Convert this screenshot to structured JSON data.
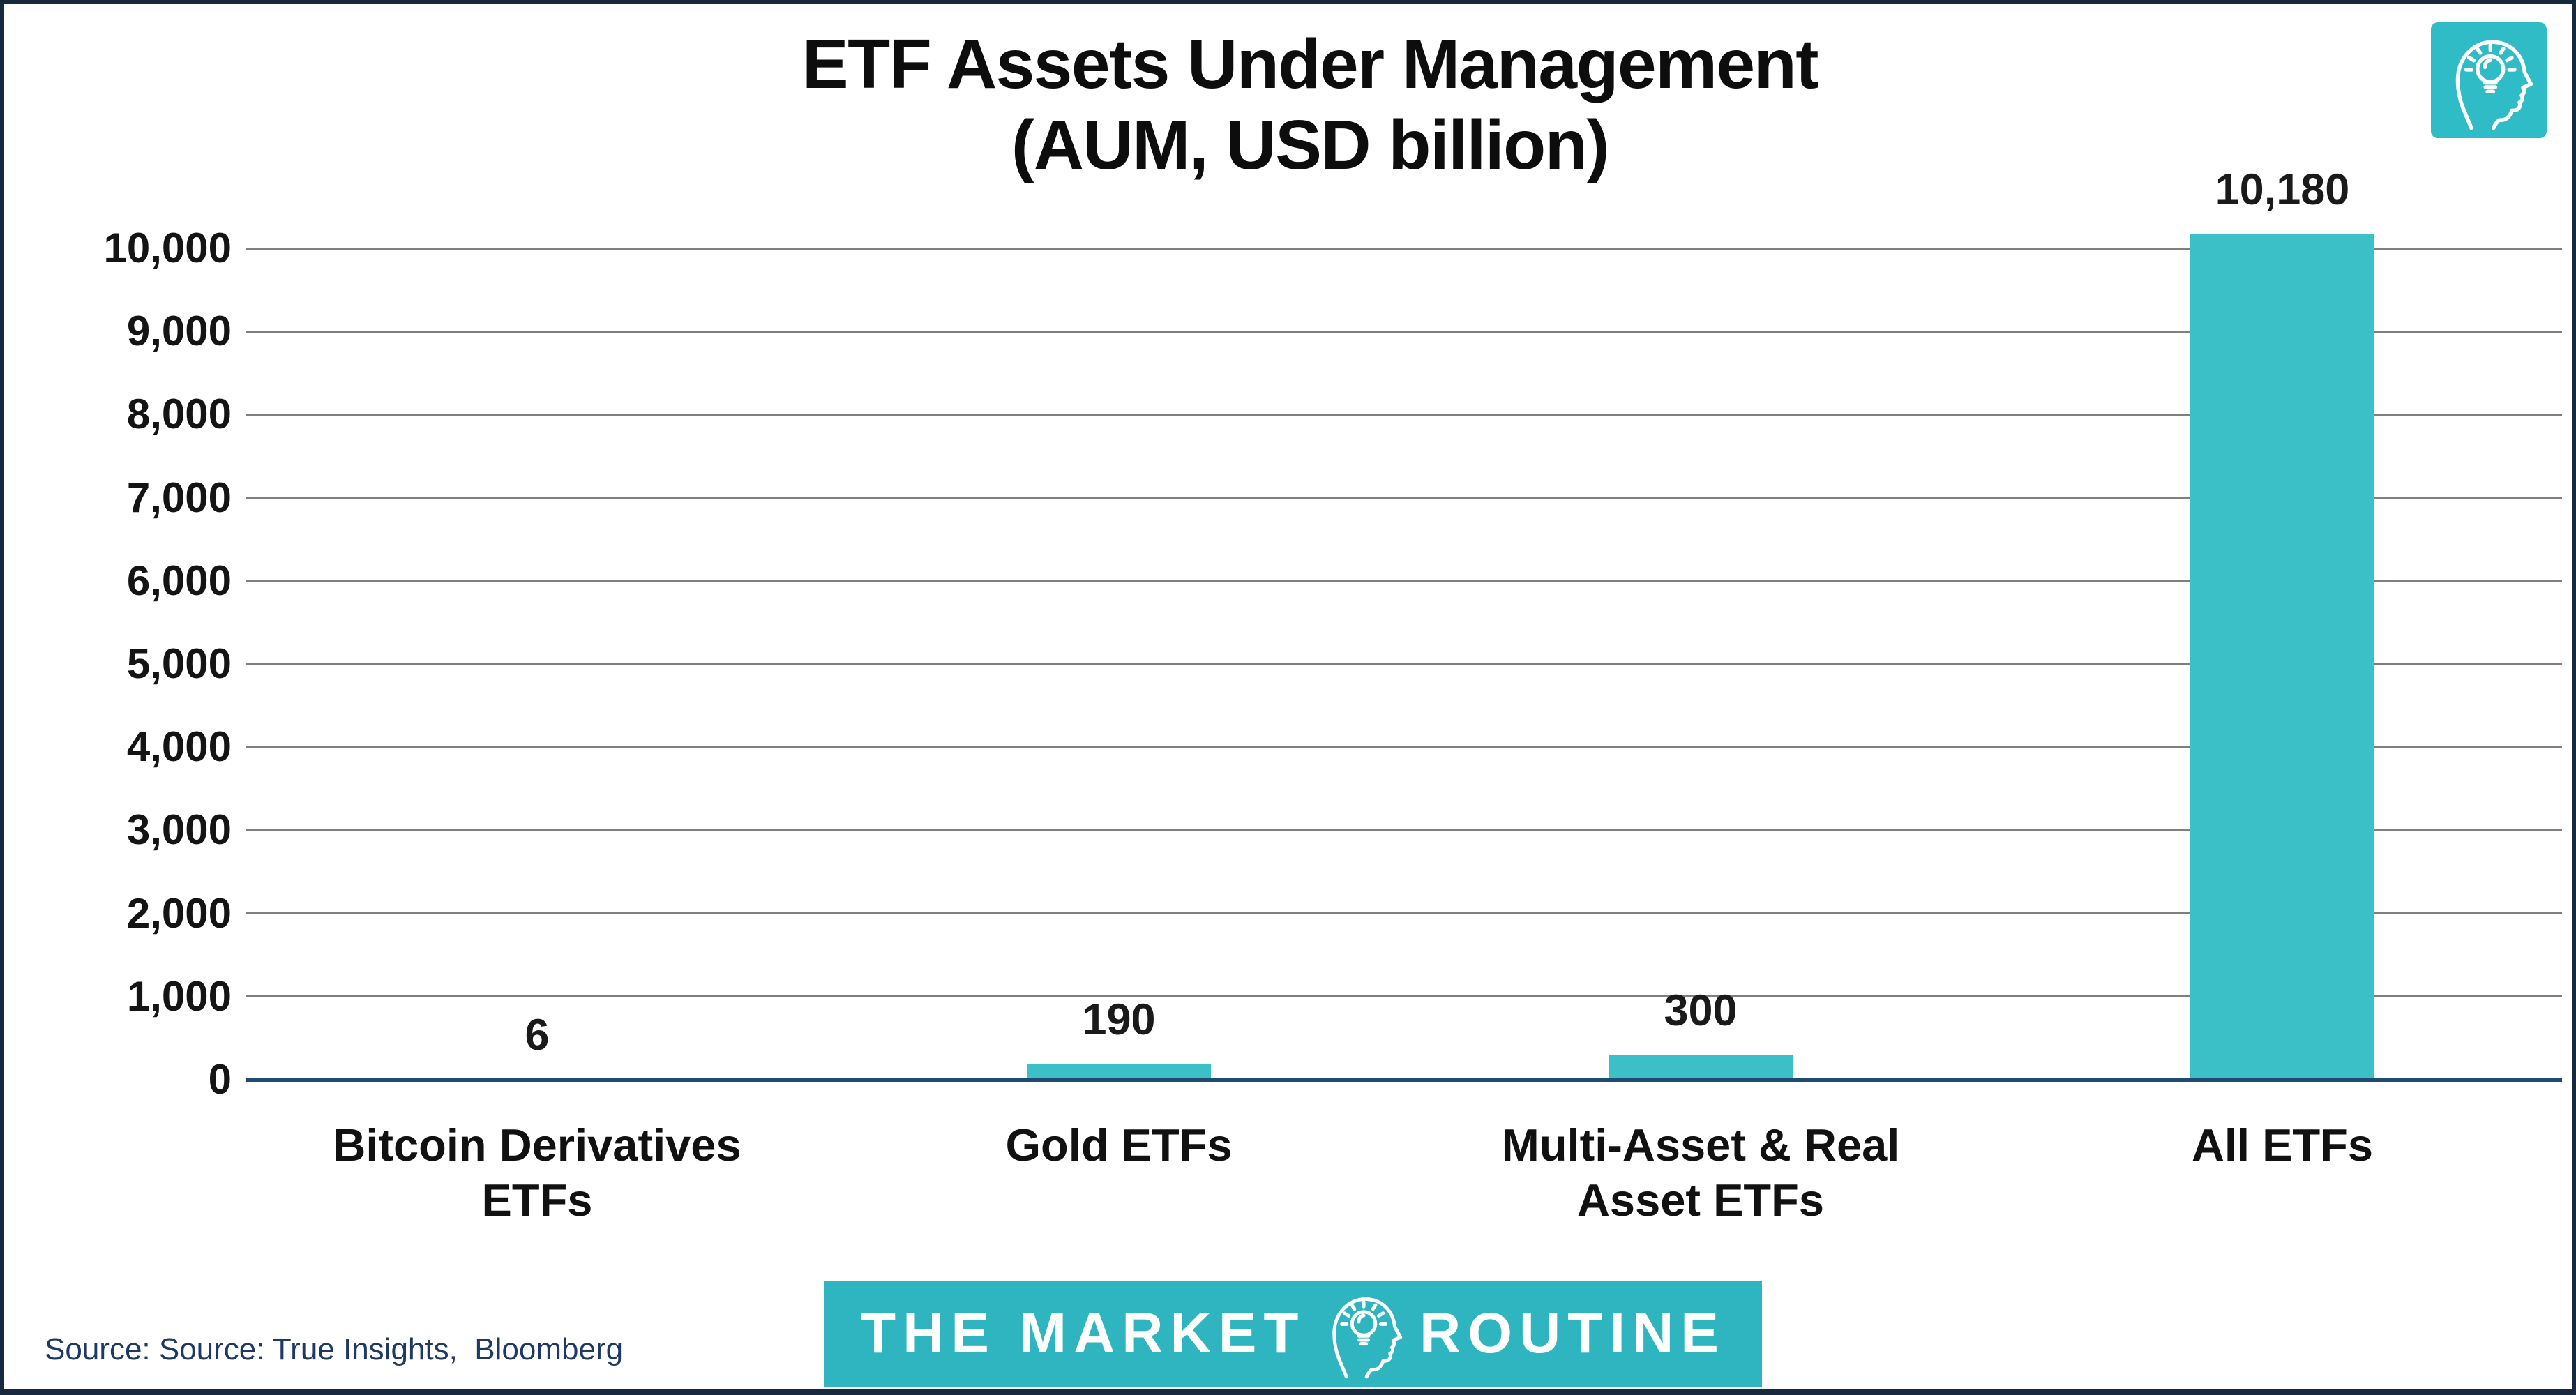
{
  "title": {
    "line1": "ETF Assets Under Management",
    "line2": "(AUM, USD billion)"
  },
  "chart_data": {
    "type": "bar",
    "title": "ETF Assets Under Management (AUM, USD billion)",
    "categories": [
      "Bitcoin Derivatives ETFs",
      "Gold ETFs",
      "Multi-Asset & Real Asset ETFs",
      "All ETFs"
    ],
    "categories_wrapped": [
      "Bitcoin Derivatives\nETFs",
      "Gold ETFs",
      "Multi-Asset & Real\nAsset ETFs",
      "All ETFs"
    ],
    "values": [
      6,
      190,
      300,
      10180
    ],
    "value_labels": [
      "6",
      "190",
      "300",
      "10,180"
    ],
    "xlabel": "",
    "ylabel": "",
    "ylim": [
      0,
      10000
    ],
    "ytick_interval": 1000,
    "ytick_labels": [
      "0",
      "1,000",
      "2,000",
      "3,000",
      "4,000",
      "5,000",
      "6,000",
      "7,000",
      "8,000",
      "9,000",
      "10,000"
    ],
    "grid": true,
    "legend": false,
    "bar_color": "#3bc0c8"
  },
  "footer": {
    "source_text": "Source: Source: True Insights,  Bloomberg",
    "banner": {
      "left_text": "THE MARKET",
      "right_text": "ROUTINE",
      "icon": "head-lightbulb-icon",
      "bg": "#2fb5bf"
    }
  },
  "logo": {
    "icon": "head-lightbulb-icon",
    "bg": "#30bcc6"
  },
  "colors": {
    "bar": "#3bc0c8",
    "axis_line": "#1f4a74",
    "gridline": "#7f7f7f",
    "frame": "#16293f",
    "source_text": "#1f3864",
    "label_text": "#111111"
  }
}
